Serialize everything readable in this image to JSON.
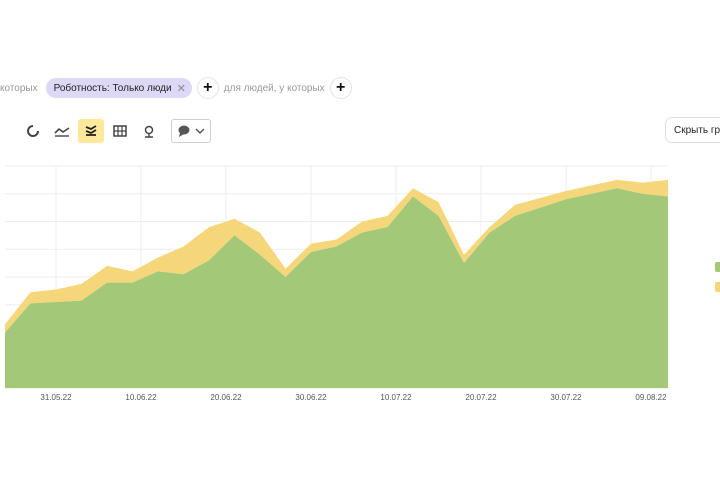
{
  "filters": {
    "left_fragment": "которых",
    "chip_label": "Роботность: Только люди",
    "add_label": "+",
    "people_fragment": "для людей, у которых"
  },
  "toolbar": {
    "tools": [
      "stacked-area-icon-disabled",
      "line-icon",
      "stacked-area-icon",
      "table-icon",
      "map-pin-icon"
    ],
    "active_tool": "stacked-area-icon",
    "hide_button_label": "Скрыть гр"
  },
  "colors": {
    "green": "#a2c878",
    "yellow": "#f6d67a",
    "chip": "#dcd8f6",
    "active_tool": "#fde89c"
  },
  "chart_data": {
    "type": "area",
    "stacked": true,
    "x": [
      "2022-05-25",
      "2022-05-28",
      "2022-05-31",
      "2022-06-03",
      "2022-06-06",
      "2022-06-09",
      "2022-06-12",
      "2022-06-15",
      "2022-06-18",
      "2022-06-21",
      "2022-06-24",
      "2022-06-27",
      "2022-06-30",
      "2022-07-03",
      "2022-07-06",
      "2022-07-09",
      "2022-07-12",
      "2022-07-15",
      "2022-07-18",
      "2022-07-21",
      "2022-07-24",
      "2022-07-27",
      "2022-07-30",
      "2022-08-02",
      "2022-08-05",
      "2022-08-08",
      "2022-08-11"
    ],
    "series": [
      {
        "color": "#a2c878",
        "values": [
          200,
          305,
          310,
          315,
          380,
          380,
          420,
          410,
          460,
          550,
          480,
          400,
          490,
          510,
          560,
          580,
          690,
          620,
          450,
          560,
          620,
          650,
          680,
          700,
          720,
          700,
          690
        ]
      },
      {
        "color": "#f6d67a",
        "values": [
          30,
          40,
          45,
          60,
          60,
          40,
          50,
          100,
          120,
          60,
          80,
          30,
          30,
          25,
          40,
          40,
          30,
          50,
          30,
          20,
          40,
          35,
          30,
          30,
          30,
          40,
          60
        ]
      }
    ],
    "xticks": [
      "31.05.22",
      "10.06.22",
      "20.06.22",
      "30.06.22",
      "10.07.22",
      "20.07.22",
      "30.07.22",
      "09.08.22"
    ],
    "grid": true
  }
}
